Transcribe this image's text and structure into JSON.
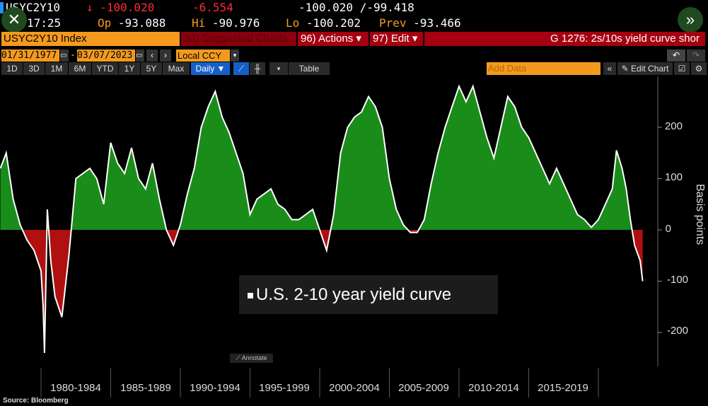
{
  "header": {
    "ticker": "USYC2Y10",
    "last": "-100.020",
    "change": "-6.554",
    "range": "-100.020",
    "range2": "-99.418",
    "time": "17:25",
    "open_label": "Op",
    "open": "-93.088",
    "high_label": "Hi",
    "high": "-90.976",
    "low_label": "Lo",
    "low": "-100.202",
    "prev_label": "Prev",
    "prev": "-93.466"
  },
  "menu": {
    "security": "USYC2Y10 Index",
    "suggested": "94) Suggested Charts",
    "actions": "96) Actions",
    "edit": "97) Edit",
    "title": "G 1276: 2s/10s yield curve shor"
  },
  "dates": {
    "start": "01/31/1977",
    "end": "03/07/2023",
    "currency": "Local CCY"
  },
  "toolbar": {
    "periods": [
      "1D",
      "3D",
      "1M",
      "6M",
      "YTD",
      "1Y",
      "5Y",
      "Max"
    ],
    "frequency": "Daily",
    "table": "Table",
    "add_data_placeholder": "Add Data",
    "edit_chart": "Edit Chart"
  },
  "annotate": "Annotate",
  "source": "Source: Bloomberg",
  "colors": {
    "positive": "#1a8c1a",
    "negative": "#b01010",
    "line": "#ffffff",
    "orange": "#f39a1e",
    "menu_red": "#a4000f"
  },
  "chart_data": {
    "type": "area",
    "title": "U.S. 2-10 year yield curve",
    "ylabel": "Basis points",
    "ylim": [
      -260,
      300
    ],
    "yticks": [
      200,
      100,
      0,
      -100,
      -200
    ],
    "xlim": [
      1977.08,
      2023.18
    ],
    "xticks": [
      {
        "label": "1980-1984",
        "from": 1980,
        "to": 1985
      },
      {
        "label": "1985-1989",
        "from": 1985,
        "to": 1990
      },
      {
        "label": "1990-1994",
        "from": 1990,
        "to": 1995
      },
      {
        "label": "1995-1999",
        "from": 1995,
        "to": 2000
      },
      {
        "label": "2000-2004",
        "from": 2000,
        "to": 2005
      },
      {
        "label": "2005-2009",
        "from": 2005,
        "to": 2010
      },
      {
        "label": "2010-2014",
        "from": 2010,
        "to": 2015
      },
      {
        "label": "2015-2019",
        "from": 2015,
        "to": 2020
      }
    ],
    "x": [
      1977.08,
      1977.5,
      1978,
      1978.5,
      1979,
      1979.5,
      1980,
      1980.15,
      1980.25,
      1980.45,
      1980.7,
      1981,
      1981.5,
      1982,
      1982.5,
      1983,
      1983.5,
      1984,
      1984.5,
      1985,
      1985.5,
      1986,
      1986.5,
      1987,
      1987.5,
      1988,
      1988.5,
      1989,
      1989.5,
      1990,
      1990.5,
      1991,
      1991.5,
      1992,
      1992.5,
      1993,
      1993.5,
      1994,
      1994.5,
      1995,
      1995.5,
      1996,
      1996.5,
      1997,
      1997.5,
      1998,
      1998.5,
      1999,
      1999.5,
      2000,
      2000.5,
      2001,
      2001.5,
      2002,
      2002.5,
      2003,
      2003.5,
      2004,
      2004.5,
      2005,
      2005.5,
      2006,
      2006.5,
      2007,
      2007.5,
      2008,
      2008.5,
      2009,
      2009.5,
      2010,
      2010.5,
      2011,
      2011.5,
      2012,
      2012.5,
      2013,
      2013.5,
      2014,
      2014.5,
      2015,
      2015.5,
      2016,
      2016.5,
      2017,
      2017.5,
      2018,
      2018.5,
      2019,
      2019.5,
      2020,
      2020.5,
      2021,
      2021.3,
      2021.7,
      2022,
      2022.3,
      2022.6,
      2023,
      2023.18
    ],
    "y": [
      120,
      150,
      60,
      10,
      -20,
      -40,
      -80,
      -150,
      -240,
      40,
      -60,
      -130,
      -170,
      -50,
      100,
      110,
      120,
      100,
      50,
      170,
      130,
      110,
      160,
      100,
      80,
      130,
      60,
      0,
      -30,
      10,
      70,
      120,
      200,
      240,
      270,
      220,
      190,
      150,
      110,
      30,
      60,
      70,
      80,
      50,
      40,
      20,
      20,
      30,
      40,
      0,
      -40,
      30,
      150,
      200,
      220,
      230,
      260,
      240,
      200,
      100,
      40,
      10,
      -5,
      -5,
      20,
      90,
      150,
      200,
      240,
      280,
      250,
      280,
      230,
      180,
      140,
      200,
      260,
      240,
      200,
      180,
      150,
      120,
      90,
      120,
      90,
      60,
      30,
      20,
      5,
      20,
      50,
      80,
      155,
      120,
      80,
      20,
      -30,
      -60,
      -100
    ]
  }
}
